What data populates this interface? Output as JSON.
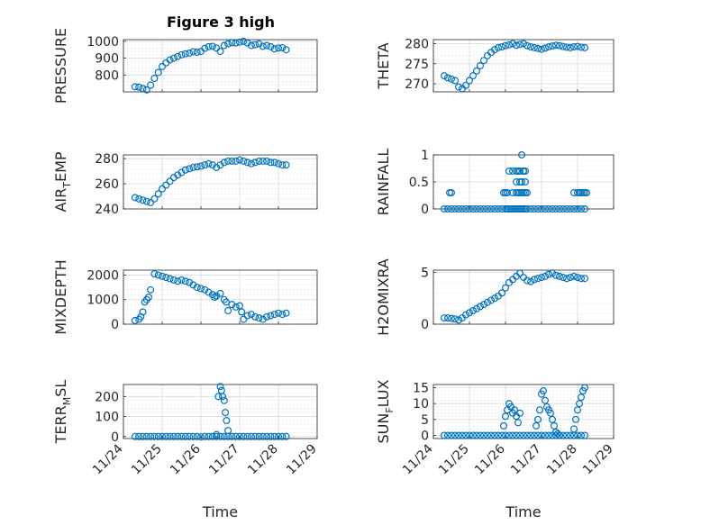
{
  "figure_title": "Figure 3 high",
  "chart_data": [
    {
      "type": "scatter",
      "ylabel": "PRESSURE",
      "ylim": [
        700,
        1010
      ],
      "yticks": [
        800,
        900,
        1000
      ],
      "xlim": [
        0,
        5
      ],
      "xticks_shown": false,
      "grid": true,
      "marker": "circle",
      "color": "#0072BD",
      "x": [
        0.3,
        0.4,
        0.5,
        0.6,
        0.7,
        0.8,
        0.9,
        1.0,
        1.1,
        1.2,
        1.3,
        1.4,
        1.5,
        1.6,
        1.7,
        1.8,
        1.9,
        2.0,
        2.1,
        2.2,
        2.3,
        2.4,
        2.5,
        2.6,
        2.7,
        2.8,
        2.9,
        3.0,
        3.1,
        3.2,
        3.3,
        3.4,
        3.5,
        3.6,
        3.7,
        3.8,
        3.9,
        4.0,
        4.1,
        4.2
      ],
      "y": [
        730,
        728,
        720,
        712,
        740,
        780,
        815,
        850,
        872,
        890,
        900,
        910,
        920,
        926,
        930,
        938,
        935,
        940,
        958,
        968,
        970,
        960,
        940,
        975,
        985,
        992,
        990,
        995,
        1000,
        990,
        975,
        980,
        985,
        970,
        975,
        968,
        955,
        960,
        962,
        950
      ]
    },
    {
      "type": "scatter",
      "ylabel": "THETA",
      "ylim": [
        268,
        281
      ],
      "yticks": [
        270,
        275,
        280
      ],
      "xlim": [
        0,
        5
      ],
      "xticks_shown": false,
      "grid": true,
      "marker": "circle",
      "color": "#0072BD",
      "x": [
        0.3,
        0.4,
        0.5,
        0.6,
        0.7,
        0.8,
        0.9,
        1.0,
        1.1,
        1.2,
        1.3,
        1.4,
        1.5,
        1.6,
        1.7,
        1.8,
        1.9,
        2.0,
        2.1,
        2.2,
        2.3,
        2.4,
        2.5,
        2.6,
        2.7,
        2.8,
        2.9,
        3.0,
        3.1,
        3.2,
        3.3,
        3.4,
        3.5,
        3.6,
        3.7,
        3.8,
        3.9,
        4.0,
        4.1,
        4.2
      ],
      "y": [
        272,
        271.5,
        271.2,
        270.8,
        269.2,
        268.8,
        269.6,
        270.8,
        272.0,
        273.2,
        274.5,
        275.8,
        277,
        277.8,
        278.5,
        279,
        279.2,
        279.5,
        279.7,
        280,
        279.6,
        279.8,
        280,
        279.5,
        279.2,
        279,
        278.8,
        278.6,
        278.9,
        279.2,
        279.4,
        279.6,
        279.5,
        279.3,
        279.1,
        279,
        279.2,
        279.3,
        279.1,
        279
      ]
    },
    {
      "type": "scatter",
      "ylabel": "AIR_TEMP",
      "ylabel_main": "AIR",
      "ylabel_sub": "T",
      "ylabel_rest": "EMP",
      "ylim": [
        240,
        283
      ],
      "yticks": [
        240,
        260,
        280
      ],
      "xlim": [
        0,
        5
      ],
      "xticks_shown": false,
      "grid": true,
      "marker": "circle",
      "color": "#0072BD",
      "x": [
        0.3,
        0.4,
        0.5,
        0.6,
        0.7,
        0.8,
        0.9,
        1.0,
        1.1,
        1.2,
        1.3,
        1.4,
        1.5,
        1.6,
        1.7,
        1.8,
        1.9,
        2.0,
        2.1,
        2.2,
        2.3,
        2.4,
        2.5,
        2.6,
        2.7,
        2.8,
        2.9,
        3.0,
        3.1,
        3.2,
        3.3,
        3.4,
        3.5,
        3.6,
        3.7,
        3.8,
        3.9,
        4.0,
        4.1,
        4.2
      ],
      "y": [
        249,
        248,
        247,
        246,
        245,
        248,
        252,
        256,
        259,
        262,
        265,
        267,
        269,
        271,
        272,
        273,
        273.5,
        274,
        275,
        276,
        275,
        273,
        275,
        277,
        278,
        278,
        278,
        279,
        278,
        277,
        276,
        277,
        278,
        278,
        278,
        277,
        277,
        276,
        275,
        275
      ]
    },
    {
      "type": "scatter",
      "ylabel": "RAINFALL",
      "ylim": [
        0,
        1
      ],
      "yticks": [
        0,
        0.5,
        1
      ],
      "xlim": [
        0,
        5
      ],
      "xticks_shown": false,
      "grid": true,
      "marker": "circle",
      "color": "#0072BD",
      "x": [
        0.3,
        0.4,
        0.5,
        0.6,
        0.7,
        0.8,
        0.9,
        1.0,
        1.1,
        1.2,
        1.3,
        1.4,
        1.5,
        1.6,
        1.7,
        1.8,
        1.9,
        2.0,
        2.05,
        2.1,
        2.15,
        2.2,
        2.25,
        2.3,
        2.35,
        2.4,
        2.45,
        2.5,
        2.55,
        2.6,
        2.7,
        2.8,
        2.9,
        3.0,
        3.1,
        3.2,
        3.3,
        3.4,
        3.5,
        3.6,
        3.7,
        3.8,
        3.9,
        4.0,
        4.1,
        4.2,
        0.45,
        0.5,
        1.95,
        2.0,
        2.05,
        2.2,
        2.3,
        2.35,
        2.4,
        2.45,
        2.5,
        2.55,
        2.6,
        2.1,
        2.2,
        2.3,
        2.35,
        2.4,
        2.5,
        2.3,
        2.4,
        2.45,
        2.55,
        3.9,
        4.0,
        4.05,
        4.1,
        4.15,
        4.2,
        4.25,
        2.45,
        2.5,
        2.55
      ],
      "y": [
        0,
        0,
        0,
        0,
        0,
        0,
        0,
        0,
        0,
        0,
        0,
        0,
        0,
        0,
        0,
        0,
        0,
        0,
        0,
        0,
        0,
        0,
        0,
        0,
        0,
        0,
        0,
        0,
        0,
        0,
        0,
        0,
        0,
        0,
        0,
        0,
        0,
        0,
        0,
        0,
        0,
        0,
        0,
        0,
        0,
        0,
        0.3,
        0.3,
        0.3,
        0.3,
        0.3,
        0.3,
        0.3,
        0.3,
        0.3,
        0.3,
        0.3,
        0.3,
        0.3,
        0.7,
        0.7,
        0.7,
        0.7,
        0.7,
        0.7,
        0.5,
        0.5,
        0.5,
        0.5,
        0.3,
        0.3,
        0.3,
        0.3,
        0.3,
        0.3,
        0.3,
        1.0,
        0.7,
        0.7
      ]
    },
    {
      "type": "scatter",
      "ylabel": "MIXDEPTH",
      "ylim": [
        0,
        2200
      ],
      "yticks": [
        0,
        1000,
        2000
      ],
      "xlim": [
        0,
        5
      ],
      "xticks_shown": false,
      "grid": true,
      "marker": "circle",
      "color": "#0072BD",
      "x": [
        0.3,
        0.4,
        0.45,
        0.5,
        0.55,
        0.6,
        0.65,
        0.7,
        0.8,
        0.9,
        1.0,
        1.1,
        1.2,
        1.3,
        1.4,
        1.5,
        1.6,
        1.7,
        1.8,
        1.9,
        2.0,
        2.1,
        2.2,
        2.3,
        2.35,
        2.4,
        2.5,
        2.6,
        2.65,
        2.7,
        2.8,
        2.9,
        3.0,
        3.05,
        3.1,
        3.2,
        3.3,
        3.4,
        3.5,
        3.6,
        3.7,
        3.8,
        3.9,
        4.0,
        4.1,
        4.2
      ],
      "y": [
        150,
        200,
        300,
        500,
        900,
        1000,
        1100,
        1400,
        2050,
        2000,
        1950,
        1900,
        1850,
        1800,
        1750,
        1800,
        1750,
        1700,
        1600,
        1500,
        1450,
        1400,
        1300,
        1200,
        1100,
        1150,
        1250,
        1000,
        900,
        550,
        800,
        700,
        750,
        500,
        200,
        350,
        400,
        300,
        250,
        200,
        300,
        350,
        400,
        450,
        400,
        450
      ]
    },
    {
      "type": "scatter",
      "ylabel": "H2OMIXRA",
      "ylim": [
        0,
        5.2
      ],
      "yticks": [
        0,
        5
      ],
      "xlim": [
        0,
        5
      ],
      "xticks_shown": false,
      "grid": true,
      "marker": "circle",
      "color": "#0072BD",
      "x": [
        0.3,
        0.4,
        0.5,
        0.6,
        0.7,
        0.8,
        0.9,
        1.0,
        1.1,
        1.2,
        1.3,
        1.4,
        1.5,
        1.6,
        1.7,
        1.8,
        1.9,
        2.0,
        2.1,
        2.2,
        2.3,
        2.4,
        2.5,
        2.6,
        2.7,
        2.8,
        2.9,
        3.0,
        3.1,
        3.2,
        3.3,
        3.4,
        3.5,
        3.6,
        3.7,
        3.8,
        3.9,
        4.0,
        4.1,
        4.2
      ],
      "y": [
        0.6,
        0.6,
        0.55,
        0.5,
        0.4,
        0.6,
        0.9,
        1.1,
        1.3,
        1.5,
        1.7,
        1.9,
        2.1,
        2.3,
        2.5,
        2.7,
        3.0,
        3.5,
        4.0,
        4.3,
        4.6,
        4.9,
        4.5,
        4.2,
        4.1,
        4.3,
        4.4,
        4.5,
        4.6,
        4.8,
        4.9,
        4.7,
        4.6,
        4.5,
        4.4,
        4.5,
        4.6,
        4.5,
        4.4,
        4.4
      ]
    },
    {
      "type": "scatter",
      "ylabel": "TERR_MSL",
      "ylabel_main": "TERR",
      "ylabel_sub": "M",
      "ylabel_rest": "SL",
      "ylim": [
        -10,
        260
      ],
      "yticks": [
        0,
        100,
        200
      ],
      "xlim": [
        0,
        5
      ],
      "xtick_labels": [
        "11/24",
        "11/25",
        "11/26",
        "11/27",
        "11/28",
        "11/29"
      ],
      "xlabel": "Time",
      "grid": true,
      "marker": "circle",
      "color": "#0072BD",
      "x": [
        0.3,
        0.4,
        0.5,
        0.6,
        0.7,
        0.8,
        0.9,
        1.0,
        1.1,
        1.2,
        1.3,
        1.4,
        1.5,
        1.6,
        1.7,
        1.8,
        1.9,
        2.0,
        2.1,
        2.2,
        2.3,
        2.4,
        2.5,
        2.6,
        2.7,
        2.8,
        2.9,
        3.0,
        3.1,
        3.2,
        3.3,
        3.4,
        3.5,
        3.6,
        3.7,
        3.8,
        3.9,
        4.0,
        4.1,
        4.2,
        2.45,
        2.5,
        2.53,
        2.56,
        2.6,
        2.63,
        2.66,
        2.7,
        2.4
      ],
      "y": [
        0,
        0,
        0,
        0,
        0,
        0,
        0,
        0,
        0,
        0,
        0,
        0,
        0,
        0,
        0,
        0,
        0,
        -2,
        0,
        0,
        0,
        0,
        0,
        0,
        0,
        0,
        0,
        0,
        0,
        0,
        0,
        0,
        0,
        0,
        0,
        0,
        0,
        0,
        0,
        0,
        200,
        250,
        230,
        200,
        180,
        120,
        80,
        30,
        10
      ]
    },
    {
      "type": "scatter",
      "ylabel": "SUN_FLUX",
      "ylabel_main": "SUN",
      "ylabel_sub": "F",
      "ylabel_rest": "LUX",
      "ylim": [
        -1,
        16
      ],
      "yticks": [
        0,
        5,
        10,
        15
      ],
      "xlim": [
        0,
        5
      ],
      "xtick_labels": [
        "11/24",
        "11/25",
        "11/26",
        "11/27",
        "11/28",
        "11/29"
      ],
      "xlabel": "Time",
      "grid": true,
      "marker": "circle",
      "color": "#0072BD",
      "x": [
        0.3,
        0.4,
        0.5,
        0.6,
        0.7,
        0.8,
        0.9,
        1.0,
        1.1,
        1.2,
        1.3,
        1.4,
        1.5,
        1.6,
        1.7,
        1.8,
        1.9,
        2.0,
        2.1,
        2.2,
        2.3,
        2.4,
        2.5,
        2.6,
        2.7,
        2.8,
        2.9,
        3.0,
        3.1,
        3.2,
        3.3,
        3.4,
        3.5,
        3.6,
        3.7,
        3.8,
        3.9,
        4.0,
        4.1,
        4.2,
        1.95,
        2.0,
        2.05,
        2.1,
        2.15,
        2.2,
        2.25,
        2.3,
        2.35,
        2.4,
        2.85,
        2.9,
        2.95,
        3.0,
        3.05,
        3.1,
        3.15,
        3.2,
        3.25,
        3.3,
        3.35,
        3.4,
        3.45,
        3.5,
        3.9,
        3.95,
        4.0,
        4.05,
        4.1,
        4.15,
        4.2
      ],
      "y": [
        0,
        0,
        0,
        0,
        0,
        0,
        0,
        0,
        0,
        0,
        0,
        0,
        0,
        0,
        0,
        0,
        0,
        0,
        0,
        0,
        0,
        0,
        0,
        0,
        0,
        0,
        0,
        0,
        0,
        0,
        0,
        0,
        0,
        0,
        0,
        0,
        0,
        0,
        0,
        0,
        3,
        6,
        8,
        10,
        9,
        7,
        8,
        6,
        4,
        7,
        3,
        5,
        8,
        13,
        14,
        11,
        9,
        8,
        7,
        5,
        3,
        1,
        0.5,
        0,
        2,
        5,
        8,
        10,
        12,
        14,
        15
      ]
    }
  ]
}
